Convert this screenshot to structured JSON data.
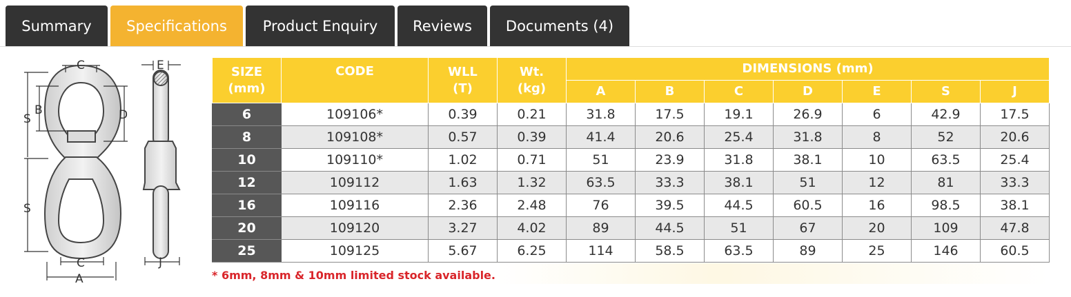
{
  "tabs": [
    {
      "label": "Summary",
      "active": false
    },
    {
      "label": "Specifications",
      "active": true
    },
    {
      "label": "Product Enquiry",
      "active": false
    },
    {
      "label": "Reviews",
      "active": false
    },
    {
      "label": "Documents (4)",
      "active": false
    }
  ],
  "drawing": {
    "labels": {
      "c_top": "C",
      "e": "E",
      "b": "B",
      "d": "D",
      "s_upper": "S",
      "s_lower": "S",
      "c_bottom": "C",
      "a": "A",
      "j": "J"
    }
  },
  "table": {
    "headers": {
      "size": "SIZE\n(mm)",
      "code": "CODE",
      "wll": "WLL\n(T)",
      "wt": "Wt.\n(kg)",
      "dimensions": "DIMENSIONS (mm)",
      "dims": [
        "A",
        "B",
        "C",
        "D",
        "E",
        "S",
        "J"
      ]
    },
    "rows": [
      {
        "size": "6",
        "code": "109106*",
        "wll": "0.39",
        "wt": "0.21",
        "dims": [
          "31.8",
          "17.5",
          "19.1",
          "26.9",
          "6",
          "42.9",
          "17.5"
        ]
      },
      {
        "size": "8",
        "code": "109108*",
        "wll": "0.57",
        "wt": "0.39",
        "dims": [
          "41.4",
          "20.6",
          "25.4",
          "31.8",
          "8",
          "52",
          "20.6"
        ]
      },
      {
        "size": "10",
        "code": "109110*",
        "wll": "1.02",
        "wt": "0.71",
        "dims": [
          "51",
          "23.9",
          "31.8",
          "38.1",
          "10",
          "63.5",
          "25.4"
        ]
      },
      {
        "size": "12",
        "code": "109112",
        "wll": "1.63",
        "wt": "1.32",
        "dims": [
          "63.5",
          "33.3",
          "38.1",
          "51",
          "12",
          "81",
          "33.3"
        ]
      },
      {
        "size": "16",
        "code": "109116",
        "wll": "2.36",
        "wt": "2.48",
        "dims": [
          "76",
          "39.5",
          "44.5",
          "60.5",
          "16",
          "98.5",
          "38.1"
        ]
      },
      {
        "size": "20",
        "code": "109120",
        "wll": "3.27",
        "wt": "4.02",
        "dims": [
          "89",
          "44.5",
          "51",
          "67",
          "20",
          "109",
          "47.8"
        ]
      },
      {
        "size": "25",
        "code": "109125",
        "wll": "5.67",
        "wt": "6.25",
        "dims": [
          "114",
          "58.5",
          "63.5",
          "89",
          "25",
          "146",
          "60.5"
        ]
      }
    ],
    "footnote": "* 6mm, 8mm & 10mm limited stock available."
  },
  "colors": {
    "tab_dark": "#333333",
    "tab_active": "#f4b330",
    "header_yellow": "#fbcf2e",
    "size_cell": "#575757",
    "footnote_red": "#d9252a"
  }
}
